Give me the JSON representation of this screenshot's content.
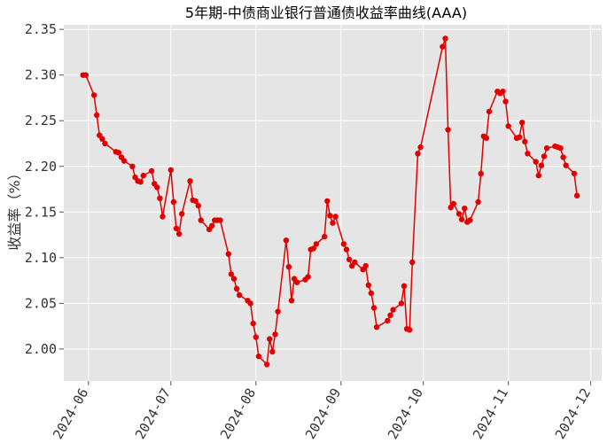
{
  "chart_data": {
    "type": "line",
    "title": "5年期-中债商业银行普通债收益率曲线(AAA)",
    "xlabel": "",
    "ylabel": "收益率（%）",
    "ylim": [
      1.965,
      2.355
    ],
    "xlim": [
      "2024-05-23",
      "2024-12-05"
    ],
    "grid": true,
    "x_ticks": [
      "2024-06",
      "2024-07",
      "2024-08",
      "2024-09",
      "2024-10",
      "2024-11",
      "2024-12"
    ],
    "y_ticks": [
      "2.00",
      "2.05",
      "2.10",
      "2.15",
      "2.20",
      "2.25",
      "2.30",
      "2.35"
    ],
    "series": [
      {
        "name": "",
        "color": "#e00000",
        "x": [
          "2024-05-30",
          "2024-05-31",
          "2024-06-03",
          "2024-06-04",
          "2024-06-05",
          "2024-06-06",
          "2024-06-07",
          "2024-06-11",
          "2024-06-12",
          "2024-06-13",
          "2024-06-14",
          "2024-06-17",
          "2024-06-18",
          "2024-06-19",
          "2024-06-20",
          "2024-06-21",
          "2024-06-24",
          "2024-06-25",
          "2024-06-26",
          "2024-06-27",
          "2024-06-28",
          "2024-07-01",
          "2024-07-02",
          "2024-07-03",
          "2024-07-04",
          "2024-07-05",
          "2024-07-08",
          "2024-07-09",
          "2024-07-10",
          "2024-07-11",
          "2024-07-12",
          "2024-07-15",
          "2024-07-16",
          "2024-07-17",
          "2024-07-18",
          "2024-07-19",
          "2024-07-22",
          "2024-07-23",
          "2024-07-24",
          "2024-07-25",
          "2024-07-26",
          "2024-07-29",
          "2024-07-30",
          "2024-07-31",
          "2024-08-01",
          "2024-08-02",
          "2024-08-05",
          "2024-08-06",
          "2024-08-07",
          "2024-08-08",
          "2024-08-09",
          "2024-08-12",
          "2024-08-13",
          "2024-08-14",
          "2024-08-15",
          "2024-08-16",
          "2024-08-19",
          "2024-08-20",
          "2024-08-21",
          "2024-08-22",
          "2024-08-23",
          "2024-08-26",
          "2024-08-27",
          "2024-08-28",
          "2024-08-29",
          "2024-08-30",
          "2024-09-02",
          "2024-09-03",
          "2024-09-04",
          "2024-09-05",
          "2024-09-06",
          "2024-09-09",
          "2024-09-10",
          "2024-09-11",
          "2024-09-12",
          "2024-09-13",
          "2024-09-14",
          "2024-09-18",
          "2024-09-19",
          "2024-09-20",
          "2024-09-23",
          "2024-09-24",
          "2024-09-25",
          "2024-09-26",
          "2024-09-27",
          "2024-09-29",
          "2024-09-30",
          "2024-10-08",
          "2024-10-09",
          "2024-10-10",
          "2024-10-11",
          "2024-10-12",
          "2024-10-14",
          "2024-10-15",
          "2024-10-16",
          "2024-10-17",
          "2024-10-18",
          "2024-10-21",
          "2024-10-22",
          "2024-10-23",
          "2024-10-24",
          "2024-10-25",
          "2024-10-28",
          "2024-10-29",
          "2024-10-30",
          "2024-10-31",
          "2024-11-01",
          "2024-11-04",
          "2024-11-05",
          "2024-11-06",
          "2024-11-07",
          "2024-11-08",
          "2024-11-11",
          "2024-11-12",
          "2024-11-13",
          "2024-11-14",
          "2024-11-15",
          "2024-11-18",
          "2024-11-19",
          "2024-11-20",
          "2024-11-21",
          "2024-11-22",
          "2024-11-25",
          "2024-11-26"
        ],
        "y": [
          2.3,
          2.3,
          2.278,
          2.256,
          2.234,
          2.23,
          2.225,
          2.216,
          2.215,
          2.21,
          2.206,
          2.2,
          2.188,
          2.184,
          2.183,
          2.19,
          2.195,
          2.181,
          2.177,
          2.165,
          2.145,
          2.196,
          2.161,
          2.132,
          2.126,
          2.148,
          2.184,
          2.163,
          2.162,
          2.157,
          2.141,
          2.131,
          2.135,
          2.141,
          2.141,
          2.141,
          2.104,
          2.082,
          2.077,
          2.066,
          2.059,
          2.053,
          2.05,
          2.028,
          2.013,
          1.992,
          1.983,
          2.011,
          1.997,
          2.016,
          2.041,
          2.119,
          2.09,
          2.053,
          2.077,
          2.073,
          2.076,
          2.079,
          2.109,
          2.11,
          2.115,
          2.123,
          2.162,
          2.146,
          2.138,
          2.145,
          2.115,
          2.109,
          2.098,
          2.091,
          2.095,
          2.087,
          2.091,
          2.07,
          2.061,
          2.045,
          2.024,
          2.031,
          2.037,
          2.043,
          2.05,
          2.069,
          2.022,
          2.021,
          2.095,
          2.214,
          2.221,
          2.331,
          2.34,
          2.24,
          2.155,
          2.159,
          2.148,
          2.142,
          2.154,
          2.139,
          2.141,
          2.161,
          2.192,
          2.233,
          2.231,
          2.26,
          2.282,
          2.28,
          2.282,
          2.271,
          2.244,
          2.231,
          2.232,
          2.248,
          2.227,
          2.214,
          2.205,
          2.19,
          2.201,
          2.211,
          2.22,
          2.222,
          2.221,
          2.22,
          2.21,
          2.201,
          2.192,
          2.168
        ]
      }
    ]
  }
}
